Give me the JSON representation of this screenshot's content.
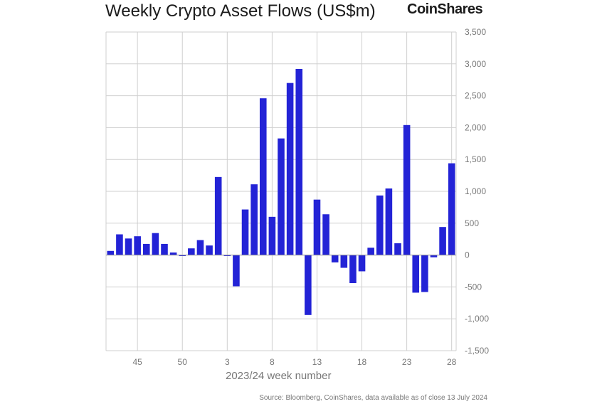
{
  "header": {
    "title": "Weekly Crypto Asset Flows (US$m)",
    "brand": "CoinShares"
  },
  "footer": {
    "source": "Source: Bloomberg, CoinShares, data available as of close 13 July 2024"
  },
  "colors": {
    "bar": "#2323d6",
    "grid": "#cfcfcf",
    "text": "#777777"
  },
  "chart_data": {
    "type": "bar",
    "title": "Weekly Crypto Asset Flows (US$m)",
    "xlabel": "2023/24 week number",
    "ylabel": "",
    "ylim": [
      -1500,
      3500
    ],
    "yticks": [
      3500,
      3000,
      2500,
      2000,
      1500,
      1000,
      500,
      0,
      -500,
      -1000,
      -1500
    ],
    "ytick_labels": [
      "3,500",
      "3,000",
      "2,500",
      "2,000",
      "1,500",
      "1,000",
      "500",
      "0",
      "-500",
      "-1,000",
      "-1,500"
    ],
    "xtick_labels": [
      "45",
      "50",
      "3",
      "8",
      "13",
      "18",
      "23",
      "28"
    ],
    "x_tick_positions": [
      45,
      50,
      3,
      8,
      13,
      18,
      23,
      28
    ],
    "grid": true,
    "y_axis_side": "right",
    "categories": [
      "42",
      "43",
      "44",
      "45",
      "46",
      "47",
      "48",
      "49",
      "50",
      "51",
      "52",
      "1",
      "2",
      "3",
      "4",
      "5",
      "6",
      "7",
      "8",
      "9",
      "10",
      "11",
      "12",
      "13",
      "14",
      "15",
      "16",
      "17",
      "18",
      "19",
      "20",
      "21",
      "22",
      "23",
      "24",
      "25",
      "26",
      "27",
      "28"
    ],
    "values": [
      65,
      325,
      260,
      295,
      175,
      345,
      175,
      40,
      -15,
      105,
      235,
      150,
      1225,
      -15,
      -490,
      715,
      1110,
      2460,
      600,
      1830,
      2700,
      2920,
      -940,
      870,
      640,
      -115,
      -200,
      -440,
      -255,
      115,
      935,
      1045,
      185,
      2040,
      -590,
      -580,
      -35,
      440,
      1440
    ]
  }
}
